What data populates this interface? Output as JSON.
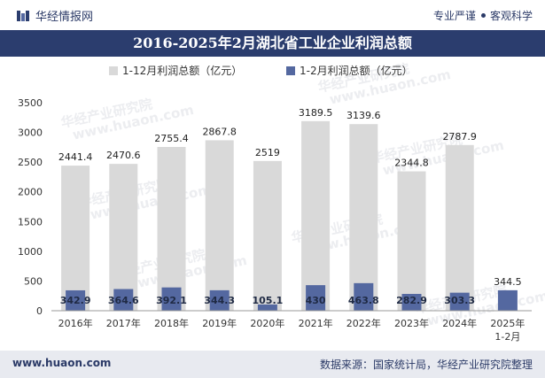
{
  "header": {
    "brand": "华经情报网",
    "slogan_left": "专业严谨",
    "slogan_right": "客观科学"
  },
  "footer": {
    "website": "www.huaon.com",
    "source": "数据来源：国家统计局，华经产业研究院整理"
  },
  "watermark": [
    "华经产业研究院",
    "www.huaon.com"
  ],
  "colors": {
    "bar_total": "#d9d9d9",
    "bar_feb": "#5468a0",
    "title_bg": "#2b3d6e"
  },
  "chart_data": {
    "type": "bar",
    "title": "2016-2025年2月湖北省工业企业利润总额",
    "categories": [
      "2016年",
      "2017年",
      "2018年",
      "2019年",
      "2020年",
      "2021年",
      "2022年",
      "2023年",
      "2024年",
      "2025年 1-2月"
    ],
    "series": [
      {
        "name": "1-12月利润总额（亿元）",
        "values": [
          2441.4,
          2470.6,
          2755.4,
          2867.8,
          2519,
          3189.5,
          3139.6,
          2344.8,
          2787.9,
          null
        ]
      },
      {
        "name": "1-2月利润总额（亿元）",
        "values": [
          342.9,
          364.6,
          392.1,
          344.3,
          105.1,
          430,
          463.8,
          282.9,
          303.3,
          344.5
        ]
      }
    ],
    "ylim": [
      0,
      3500
    ],
    "yticks": [
      0,
      500,
      1000,
      1500,
      2000,
      2500,
      3000,
      3500
    ],
    "legend_position": "top-center",
    "grid": false
  }
}
